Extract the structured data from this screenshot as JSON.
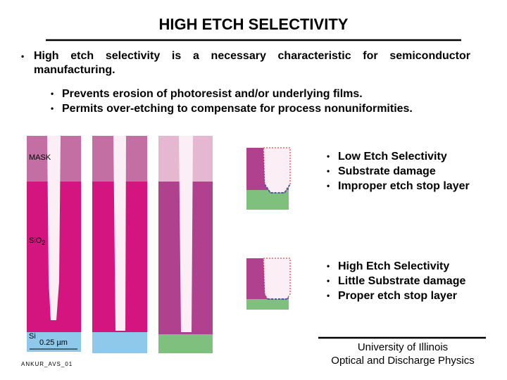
{
  "header": {
    "title": "HIGH ETCH SELECTIVITY"
  },
  "bullets": {
    "main": "High etch selectivity is a necessary characteristic for semiconductor manufacturing.",
    "sub": [
      "Prevents erosion of photoresist and/or underlying films.",
      "Permits over-etching to compensate for process nonuniformities."
    ]
  },
  "figure": {
    "mask_label": "MASK",
    "oxide_label": {
      "text": "SiO",
      "subscript": "2"
    },
    "substrate_label": "Si",
    "scale_label": "0.25 µm",
    "figure_id": "ANKUR_AVS_01"
  },
  "low_selectivity": [
    "Low Etch Selectivity",
    "Substrate damage",
    "Improper etch stop layer"
  ],
  "high_selectivity": [
    "High Etch Selectivity",
    "Little Substrate damage",
    "Proper etch stop layer"
  ],
  "footer": {
    "line1": "University of Illinois",
    "line2": "Optical and Discharge Physics"
  }
}
